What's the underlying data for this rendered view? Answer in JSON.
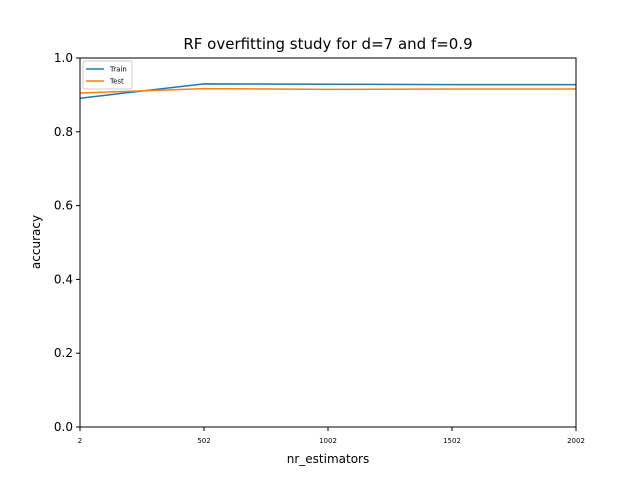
{
  "chart_data": {
    "type": "line",
    "title": "RF overfitting study for d=7 and f=0.9",
    "xlabel": "nr_estimators",
    "ylabel": "accuracy",
    "xlim": [
      2,
      2002
    ],
    "ylim": [
      0.0,
      1.0
    ],
    "xticks": [
      2,
      502,
      1002,
      1502,
      2002
    ],
    "xtick_labels": [
      "2",
      "502",
      "1002",
      "1502",
      "2002"
    ],
    "yticks": [
      0.0,
      0.2,
      0.4,
      0.6,
      0.8,
      1.0
    ],
    "ytick_labels": [
      "0.0",
      "0.2",
      "0.4",
      "0.6",
      "0.8",
      "1.0"
    ],
    "grid": false,
    "legend": {
      "placement": "top-left"
    },
    "series": [
      {
        "name": "Train",
        "color": "#1f77b4",
        "x": [
          2,
          502,
          1002,
          1502,
          2002
        ],
        "y": [
          0.891,
          0.93,
          0.929,
          0.928,
          0.928
        ]
      },
      {
        "name": "Test",
        "color": "#ff7f0e",
        "x": [
          2,
          502,
          1002,
          1502,
          2002
        ],
        "y": [
          0.905,
          0.917,
          0.915,
          0.916,
          0.916
        ]
      }
    ]
  }
}
